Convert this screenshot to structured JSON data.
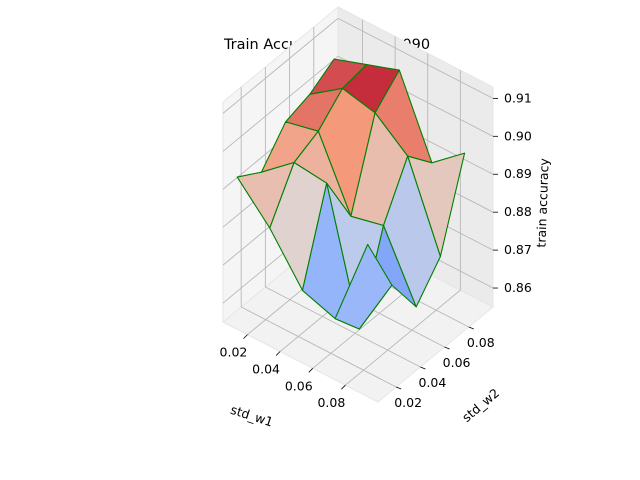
{
  "chart_data": {
    "type": "surface3d",
    "title": "Train Accuracy Sample 1090",
    "xlabel": "std_w1",
    "ylabel": "std_w2",
    "zlabel": "train accuracy",
    "x_ticks": [
      "0.02",
      "0.04",
      "0.06",
      "0.08"
    ],
    "y_ticks": [
      "0.02",
      "0.04",
      "0.06",
      "0.08"
    ],
    "z_ticks": [
      "0.86",
      "0.87",
      "0.88",
      "0.89",
      "0.90",
      "0.91"
    ],
    "xlim": [
      0.005,
      0.1
    ],
    "ylim": [
      0.005,
      0.1
    ],
    "zlim": [
      0.855,
      0.913
    ],
    "x": [
      0.01,
      0.03,
      0.05,
      0.07,
      0.09
    ],
    "y": [
      0.01,
      0.03,
      0.05,
      0.07,
      0.09
    ],
    "z": [
      [
        0.893,
        0.889,
        0.897,
        0.899,
        0.903
      ],
      [
        0.884,
        0.896,
        0.899,
        0.905,
        0.906
      ],
      [
        0.872,
        0.895,
        0.881,
        0.903,
        0.909
      ],
      [
        0.869,
        0.861,
        0.883,
        0.896,
        0.889
      ],
      [
        0.893,
        0.877,
        0.866,
        0.874,
        0.896
      ]
    ],
    "colormap": "coolwarm",
    "edge_color": "#008000",
    "grid": true
  }
}
